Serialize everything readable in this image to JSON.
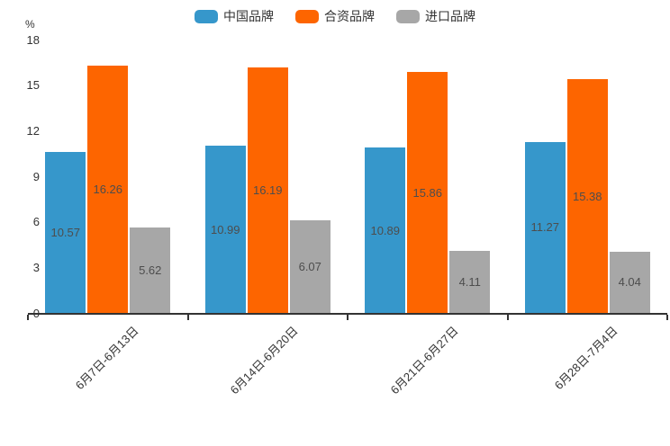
{
  "chart_data": {
    "type": "bar",
    "title": "",
    "unit_label": "%",
    "categories": [
      "6月7日-6月13日",
      "6月14日-6月20日",
      "6月21日-6月27日",
      "6月28日-7月4日"
    ],
    "series": [
      {
        "name": "中国品牌",
        "color": "#3697cb",
        "values": [
          10.57,
          10.99,
          10.89,
          11.27
        ]
      },
      {
        "name": "合资品牌",
        "color": "#fd6500",
        "values": [
          16.26,
          16.19,
          15.86,
          15.38
        ]
      },
      {
        "name": "进口品牌",
        "color": "#a7a7a7",
        "values": [
          5.62,
          6.07,
          4.11,
          4.04
        ]
      }
    ],
    "ylim": [
      0,
      18
    ],
    "yticks": [
      0,
      3,
      6,
      9,
      12,
      15,
      18
    ],
    "grid": false,
    "legend_position": "top",
    "axis_color": "#333333",
    "bar_label_color": "#4d4d4d",
    "background": "#ffffff"
  }
}
